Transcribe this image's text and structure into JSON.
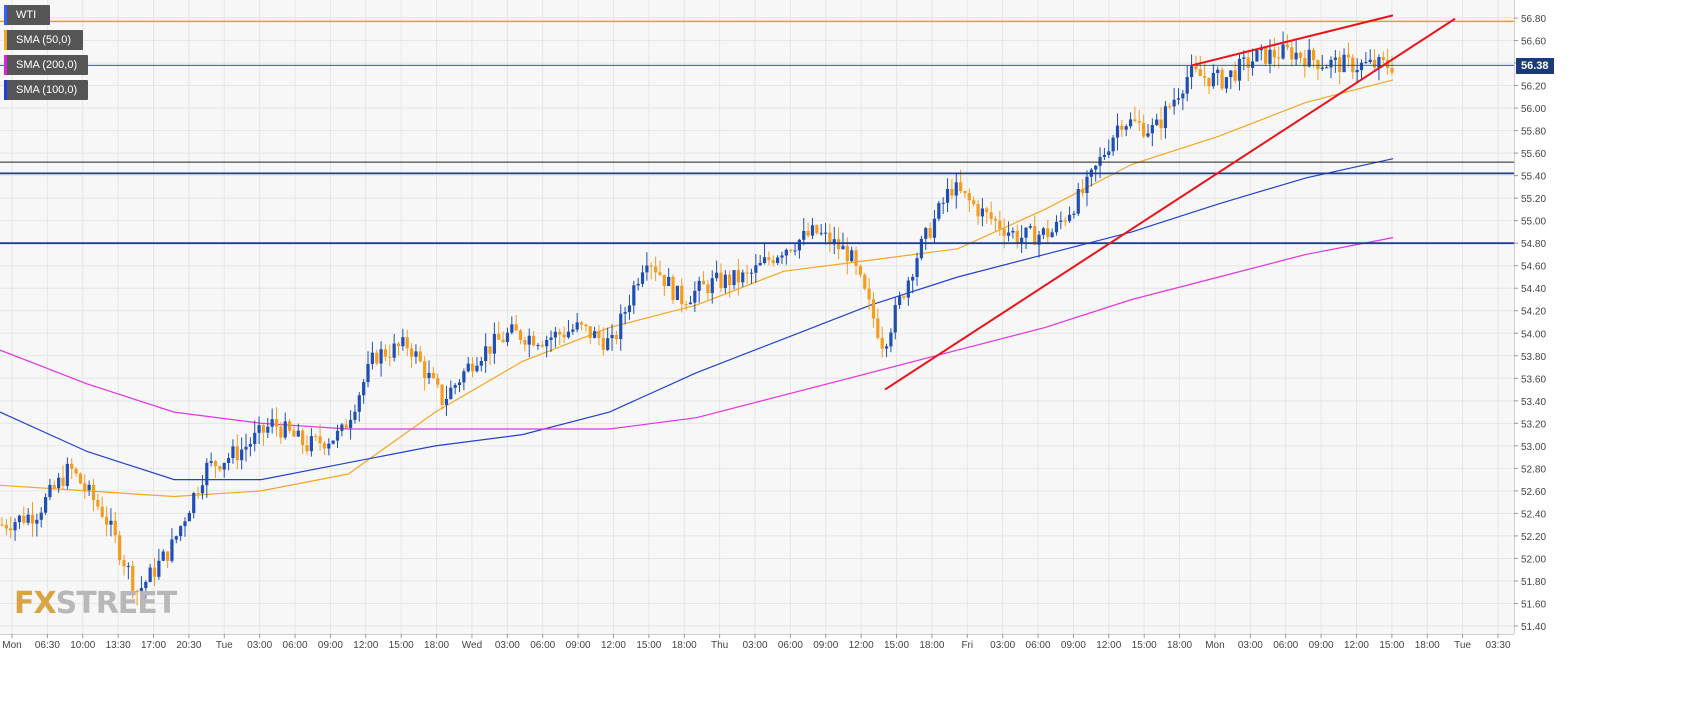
{
  "legend": [
    {
      "label": "WTI",
      "color": "#2962ff"
    },
    {
      "label": "SMA (50,0)",
      "color": "#f5a623"
    },
    {
      "label": "SMA (200,0)",
      "color": "#e020e0"
    },
    {
      "label": "SMA (100,0)",
      "color": "#1f3fd6"
    }
  ],
  "watermark": {
    "part1": "FX",
    "part2": "STREET"
  },
  "last_price_label": "56.38",
  "colors": {
    "up_candle": "#1f4fb4",
    "down_candle": "#f39c1f",
    "sma50": "#f5a623",
    "sma100": "#2142cc",
    "sma200": "#e532e0",
    "trendline": "#e8141c",
    "resistance": "#f39c12",
    "support": "#1d3f8e",
    "grid": "#e6e6e6",
    "background": "#f7f7f7"
  },
  "chart_data": {
    "type": "candlestick",
    "symbol": "WTI",
    "ylim": [
      51.4,
      56.9
    ],
    "yticks": [
      "51.40",
      "51.60",
      "51.80",
      "52.00",
      "52.20",
      "52.40",
      "52.60",
      "52.80",
      "53.00",
      "53.20",
      "53.40",
      "53.60",
      "53.80",
      "54.00",
      "54.20",
      "54.40",
      "54.60",
      "54.80",
      "55.00",
      "55.20",
      "55.40",
      "55.60",
      "55.80",
      "56.00",
      "56.20",
      "56.40",
      "56.60",
      "56.80"
    ],
    "xticks": [
      "Mon",
      "06:30",
      "10:00",
      "13:30",
      "17:00",
      "20:30",
      "Tue",
      "03:00",
      "06:00",
      "09:00",
      "12:00",
      "15:00",
      "18:00",
      "Wed",
      "03:00",
      "06:00",
      "09:00",
      "12:00",
      "15:00",
      "18:00",
      "Thu",
      "03:00",
      "06:00",
      "09:00",
      "12:00",
      "15:00",
      "18:00",
      "Fri",
      "03:00",
      "06:00",
      "09:00",
      "12:00",
      "15:00",
      "18:00",
      "Mon",
      "03:00",
      "06:00",
      "09:00",
      "12:00",
      "15:00",
      "18:00",
      "Tue",
      "03:30"
    ],
    "horizontal_lines": [
      {
        "value": 56.77,
        "role": "resistance"
      },
      {
        "value": 55.52,
        "role": "level"
      },
      {
        "value": 55.42,
        "role": "support"
      },
      {
        "value": 54.8,
        "role": "support"
      },
      {
        "value": 56.38,
        "role": "last-price"
      }
    ],
    "trendlines": [
      {
        "from": [
          "Thu 15:00",
          53.5
        ],
        "to": [
          "Mon 20:00",
          56.9
        ]
      },
      {
        "from": [
          "Fri 21:00",
          56.38
        ],
        "to": [
          "Mon 18:00",
          56.85
        ]
      }
    ],
    "close_path": [
      [
        "Mon",
        52.3
      ],
      [
        "06:30",
        52.4
      ],
      [
        "10:00",
        52.8
      ],
      [
        "13:30",
        52.4
      ],
      [
        "13:30",
        51.7
      ],
      [
        "17:00",
        52.1
      ],
      [
        "20:30",
        52.8
      ],
      [
        "Tue",
        52.95
      ],
      [
        "03:00",
        53.2
      ],
      [
        "06:00",
        53.0
      ],
      [
        "09:00",
        53.1
      ],
      [
        "12:00",
        53.8
      ],
      [
        "15:00",
        53.9
      ],
      [
        "18:00",
        53.4
      ],
      [
        "Wed",
        53.8
      ],
      [
        "03:00",
        54.0
      ],
      [
        "06:00",
        53.95
      ],
      [
        "09:00",
        54.05
      ],
      [
        "12:00",
        53.9
      ],
      [
        "15:00",
        54.7
      ],
      [
        "18:00",
        54.3
      ],
      [
        "Thu",
        54.45
      ],
      [
        "03:00",
        54.5
      ],
      [
        "06:00",
        54.75
      ],
      [
        "09:00",
        54.9
      ],
      [
        "12:00",
        54.7
      ],
      [
        "15:00",
        53.9
      ],
      [
        "18:00",
        54.7
      ],
      [
        "Fri",
        55.3
      ],
      [
        "03:00",
        55.05
      ],
      [
        "06:00",
        54.85
      ],
      [
        "09:00",
        54.9
      ],
      [
        "12:00",
        55.3
      ],
      [
        "15:00",
        55.9
      ],
      [
        "18:00",
        55.8
      ],
      [
        "Mon",
        56.3
      ],
      [
        "03:00",
        56.25
      ],
      [
        "06:00",
        56.45
      ],
      [
        "09:00",
        56.5
      ],
      [
        "12:00",
        56.4
      ],
      [
        "15:00",
        56.38
      ],
      [
        "18:00",
        56.38
      ]
    ],
    "series": [
      {
        "name": "SMA (50,0)",
        "values": [
          [
            0,
            52.65
          ],
          [
            20,
            52.6
          ],
          [
            40,
            52.55
          ],
          [
            60,
            52.6
          ],
          [
            80,
            52.75
          ],
          [
            100,
            53.3
          ],
          [
            120,
            53.75
          ],
          [
            140,
            54.05
          ],
          [
            160,
            54.25
          ],
          [
            180,
            54.55
          ],
          [
            200,
            54.65
          ],
          [
            220,
            54.75
          ],
          [
            240,
            55.1
          ],
          [
            260,
            55.5
          ],
          [
            280,
            55.75
          ],
          [
            300,
            56.05
          ],
          [
            320,
            56.25
          ]
        ]
      },
      {
        "name": "SMA (100,0)",
        "values": [
          [
            0,
            53.3
          ],
          [
            20,
            52.95
          ],
          [
            40,
            52.7
          ],
          [
            60,
            52.7
          ],
          [
            80,
            52.85
          ],
          [
            100,
            53.0
          ],
          [
            120,
            53.1
          ],
          [
            140,
            53.3
          ],
          [
            160,
            53.65
          ],
          [
            180,
            53.95
          ],
          [
            200,
            54.25
          ],
          [
            220,
            54.5
          ],
          [
            240,
            54.7
          ],
          [
            260,
            54.9
          ],
          [
            280,
            55.15
          ],
          [
            300,
            55.38
          ],
          [
            320,
            55.55
          ]
        ]
      },
      {
        "name": "SMA (200,0)",
        "values": [
          [
            0,
            53.85
          ],
          [
            20,
            53.55
          ],
          [
            40,
            53.3
          ],
          [
            60,
            53.2
          ],
          [
            80,
            53.15
          ],
          [
            100,
            53.15
          ],
          [
            120,
            53.15
          ],
          [
            140,
            53.15
          ],
          [
            160,
            53.25
          ],
          [
            180,
            53.45
          ],
          [
            200,
            53.65
          ],
          [
            220,
            53.85
          ],
          [
            240,
            54.05
          ],
          [
            260,
            54.3
          ],
          [
            280,
            54.5
          ],
          [
            300,
            54.7
          ],
          [
            320,
            54.85
          ]
        ]
      }
    ]
  }
}
